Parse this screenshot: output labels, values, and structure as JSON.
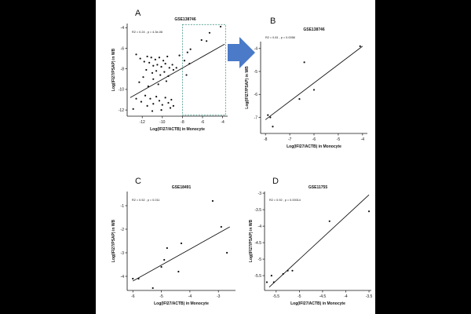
{
  "colors": {
    "page": "#000000",
    "figure": "#ffffff",
    "ink": "#111111",
    "arrow": "#4a7ac8",
    "highlight": "#4a9a8a"
  },
  "chart_data": [
    {
      "id": "A",
      "type": "scatter",
      "panel_label": "A",
      "title": "GSE138746",
      "stats": "R2 = 0.24 ,  p = 4.3e-06",
      "xlabel": "Log(IFI27/ACTB) in Monocyte",
      "ylabel": "Log(IFI27/PSAP) in WB",
      "xlim": [
        -13.5,
        -3.5
      ],
      "ylim": [
        -12.6,
        -3.6
      ],
      "xticks": [
        -12,
        -10,
        -8,
        -6,
        -4
      ],
      "yticks": [
        -12,
        -10,
        -8,
        -6,
        -4
      ],
      "fit": {
        "x": [
          -13.2,
          -3.8
        ],
        "y": [
          -10.8,
          -5.6
        ]
      },
      "highlight_region": {
        "x": [
          -8,
          -3.7
        ],
        "y": [
          -12.5,
          -3.7
        ]
      },
      "points": [
        [
          -4.2,
          -3.9
        ],
        [
          -5.3,
          -4.5
        ],
        [
          -5.6,
          -5.3
        ],
        [
          -6.1,
          -5.2
        ],
        [
          -7.2,
          -6.1
        ],
        [
          -7.5,
          -6.4
        ],
        [
          -8.3,
          -6.7
        ],
        [
          -7.8,
          -7.2
        ],
        [
          -7.3,
          -7.5
        ],
        [
          -8.6,
          -7.9
        ],
        [
          -9.0,
          -7.6
        ],
        [
          -8.9,
          -8.1
        ],
        [
          -7.6,
          -8.6
        ],
        [
          -12.6,
          -6.6
        ],
        [
          -12.2,
          -7.0
        ],
        [
          -11.8,
          -7.3
        ],
        [
          -11.5,
          -6.8
        ],
        [
          -11.3,
          -7.4
        ],
        [
          -11.1,
          -6.9
        ],
        [
          -10.9,
          -7.7
        ],
        [
          -10.7,
          -7.1
        ],
        [
          -10.5,
          -7.6
        ],
        [
          -10.3,
          -6.9
        ],
        [
          -10.1,
          -7.8
        ],
        [
          -9.9,
          -7.2
        ],
        [
          -9.7,
          -7.5
        ],
        [
          -9.5,
          -6.8
        ],
        [
          -9.3,
          -7.9
        ],
        [
          -11.6,
          -8.1
        ],
        [
          -11.0,
          -8.4
        ],
        [
          -10.6,
          -8.2
        ],
        [
          -10.2,
          -8.6
        ],
        [
          -9.8,
          -8.3
        ],
        [
          -9.4,
          -8.7
        ],
        [
          -11.9,
          -8.8
        ],
        [
          -10.9,
          -9.0
        ],
        [
          -9.6,
          -9.2
        ],
        [
          -10.4,
          -9.5
        ],
        [
          -12.3,
          -9.3
        ],
        [
          -11.4,
          -9.7
        ],
        [
          -12.6,
          -10.9
        ],
        [
          -12.1,
          -11.2
        ],
        [
          -11.7,
          -10.6
        ],
        [
          -11.5,
          -11.6
        ],
        [
          -11.2,
          -10.9
        ],
        [
          -10.9,
          -11.4
        ],
        [
          -10.6,
          -10.7
        ],
        [
          -10.3,
          -11.1
        ],
        [
          -10.0,
          -11.5
        ],
        [
          -9.7,
          -10.8
        ],
        [
          -9.4,
          -11.3
        ],
        [
          -9.1,
          -11.0
        ],
        [
          -8.9,
          -11.6
        ],
        [
          -12.9,
          -11.9
        ],
        [
          -11.0,
          -12.1
        ],
        [
          -10.1,
          -12.0
        ],
        [
          -9.2,
          -11.8
        ]
      ]
    },
    {
      "id": "B",
      "type": "scatter",
      "panel_label": "B",
      "title": "GSE138746",
      "stats": "R2 = 0.81 ,  p = 0.0058",
      "xlabel": "Log(IFI27/ACTB) in Monocyte",
      "ylabel": "Log(IFI27/PSAP) in WB",
      "xlim": [
        -8.2,
        -3.8
      ],
      "ylim": [
        -7.7,
        -3.7
      ],
      "xticks": [
        -8,
        -7,
        -6,
        -5,
        -4
      ],
      "yticks": [
        -7,
        -6,
        -5,
        -4
      ],
      "fit": {
        "x": [
          -8.0,
          -4.0
        ],
        "y": [
          -7.1,
          -3.9
        ]
      },
      "points": [
        [
          -4.1,
          -3.9
        ],
        [
          -6.4,
          -4.6
        ],
        [
          -6.0,
          -5.8
        ],
        [
          -6.6,
          -6.2
        ],
        [
          -7.9,
          -6.9
        ],
        [
          -7.8,
          -7.0
        ],
        [
          -7.7,
          -7.4
        ]
      ]
    },
    {
      "id": "C",
      "type": "scatter",
      "panel_label": "C",
      "title": "GSE18491",
      "stats": "R2 = 0.52 ,  p = 0.011",
      "xlabel": "Log(IFI27/ACTB) in Monocyte",
      "ylabel": "Log(IFI27/PSAP) in WB",
      "xlim": [
        -6.2,
        -2.4
      ],
      "ylim": [
        -4.6,
        -0.4
      ],
      "xticks": [
        -6,
        -5,
        -4,
        -3
      ],
      "yticks": [
        -4,
        -3,
        -2,
        -1
      ],
      "fit": {
        "x": [
          -6.0,
          -2.6
        ],
        "y": [
          -4.2,
          -1.9
        ]
      },
      "points": [
        [
          -6.0,
          -4.1
        ],
        [
          -5.8,
          -4.1
        ],
        [
          -5.3,
          -4.5
        ],
        [
          -5.0,
          -3.6
        ],
        [
          -4.9,
          -3.3
        ],
        [
          -4.8,
          -2.8
        ],
        [
          -4.4,
          -3.8
        ],
        [
          -4.3,
          -2.6
        ],
        [
          -3.2,
          -0.8
        ],
        [
          -2.9,
          -1.9
        ],
        [
          -2.7,
          -3.0
        ]
      ]
    },
    {
      "id": "D",
      "type": "scatter",
      "panel_label": "D",
      "title": "GSE11755",
      "stats": "R2 = 0.92 ,  p = 0.00014",
      "xlabel": "Log(IFI27/ACTB) in Monocyte",
      "ylabel": "Log(IFI27/PSAP) in WB",
      "xlim": [
        -5.75,
        -3.45
      ],
      "ylim": [
        -5.95,
        -2.95
      ],
      "xticks": [
        -5.5,
        -5.0,
        -4.5,
        -4.0,
        -3.5
      ],
      "yticks": [
        -5.5,
        -5.0,
        -4.5,
        -4.0,
        -3.5,
        -3.0
      ],
      "fit": {
        "x": [
          -5.65,
          -3.5
        ],
        "y": [
          -5.85,
          -3.05
        ]
      },
      "points": [
        [
          -5.7,
          -5.7
        ],
        [
          -5.6,
          -5.5
        ],
        [
          -5.55,
          -5.7
        ],
        [
          -5.35,
          -5.45
        ],
        [
          -5.25,
          -5.35
        ],
        [
          -5.15,
          -5.35
        ],
        [
          -4.35,
          -3.85
        ],
        [
          -3.5,
          -3.55
        ]
      ]
    }
  ]
}
